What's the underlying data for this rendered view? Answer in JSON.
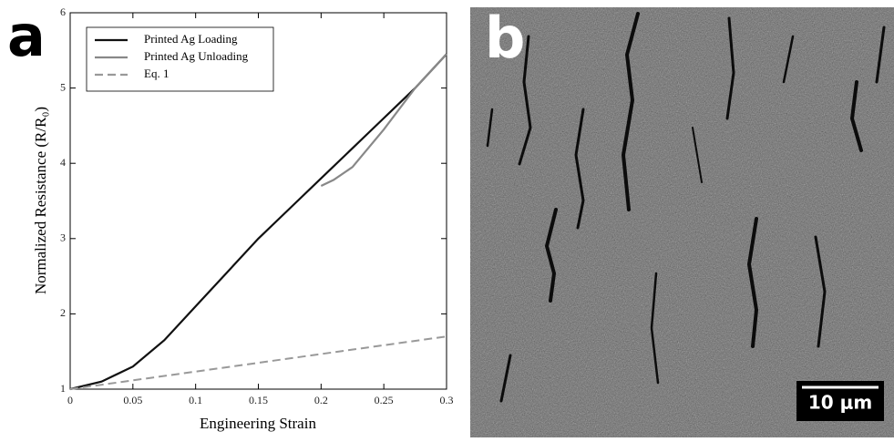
{
  "chart_data": {
    "type": "line",
    "panel_label": "a",
    "xlabel": "Engineering Strain",
    "ylabel": "Normalized Resistance (R/R₀)",
    "xlim": [
      0,
      0.3
    ],
    "xticks": [
      0,
      0.05,
      0.1,
      0.15,
      0.2,
      0.25,
      0.3
    ],
    "ylim": [
      1,
      6
    ],
    "yticks": [
      1,
      2,
      3,
      4,
      5,
      6
    ],
    "legend": "upper left",
    "series": [
      {
        "name": "Printed Ag Loading",
        "color": "#111111",
        "style": "solid",
        "x": [
          0,
          0.025,
          0.05,
          0.075,
          0.1,
          0.125,
          0.15,
          0.175,
          0.2,
          0.225,
          0.25,
          0.275,
          0.3
        ],
        "values": [
          1.0,
          1.1,
          1.3,
          1.65,
          2.1,
          2.55,
          3.0,
          3.4,
          3.8,
          4.2,
          4.6,
          5.0,
          5.45
        ]
      },
      {
        "name": "Printed Ag Unloading",
        "color": "#888888",
        "style": "solid",
        "x": [
          0.3,
          0.275,
          0.25,
          0.225,
          0.21,
          0.2
        ],
        "values": [
          5.45,
          5.0,
          4.45,
          3.95,
          3.78,
          3.7
        ]
      },
      {
        "name": "Eq. 1",
        "color": "#999999",
        "style": "dashed",
        "x": [
          0,
          0.3
        ],
        "values": [
          1.0,
          1.7
        ]
      }
    ]
  },
  "image_panel": {
    "panel_label": "b",
    "scale_bar": "10 μm"
  }
}
